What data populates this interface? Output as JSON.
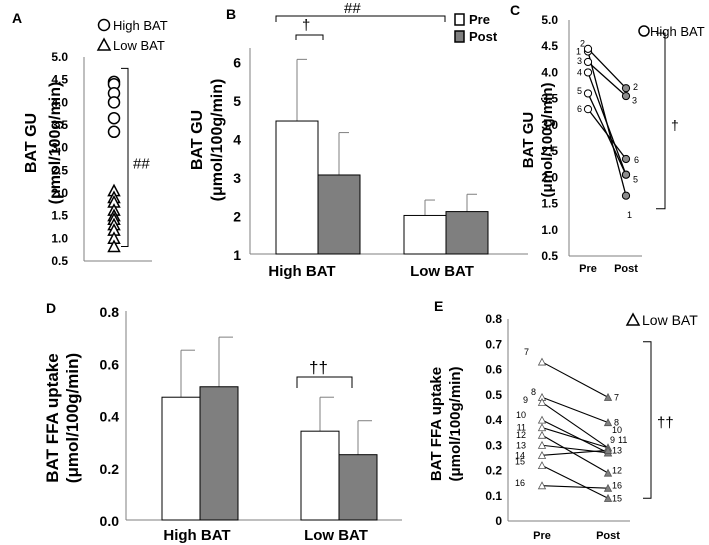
{
  "colors": {
    "white_fill": "#ffffff",
    "dark_fill": "#7f7f7f",
    "mid_fill": "#8c8c8c",
    "axis": "#7f7f7f",
    "line": "#000000"
  },
  "chart_data": [
    {
      "panel": "A",
      "type": "scatter",
      "ylabel": "BAT GU",
      "ylabel2": "(μmol/100g/min)",
      "ylim": [
        0.5,
        5.0
      ],
      "yticks": [
        "0.5",
        "1.0",
        "1.5",
        "2.0",
        "2.5",
        "3.0",
        "3.5",
        "4.0",
        "4.5",
        "5.0"
      ],
      "legend": [
        {
          "symbol": "circle",
          "label": "High BAT"
        },
        {
          "symbol": "triangle",
          "label": "Low BAT"
        }
      ],
      "series": [
        {
          "name": "High BAT",
          "symbol": "circle",
          "values": [
            4.45,
            4.4,
            4.2,
            4.0,
            3.65,
            3.35
          ]
        },
        {
          "name": "Low BAT",
          "symbol": "triangle",
          "values": [
            2.05,
            1.9,
            1.8,
            1.62,
            1.5,
            1.42,
            1.3,
            1.18,
            1.0,
            0.82
          ]
        }
      ],
      "significance": "##",
      "bracket_range": [
        0.82,
        4.75
      ]
    },
    {
      "panel": "B",
      "type": "bar",
      "ylabel": "BAT GU",
      "ylabel2": "(μmol/100g/min)",
      "ylim": [
        1,
        6.5
      ],
      "yticks": [
        "1",
        "2",
        "3",
        "4",
        "5",
        "6"
      ],
      "categories": [
        "High BAT",
        "Low BAT"
      ],
      "legend": [
        {
          "label": "Pre"
        },
        {
          "label": "Post"
        }
      ],
      "series": [
        {
          "name": "Pre",
          "values": [
            4.45,
            2.0
          ],
          "errors": [
            1.6,
            0.4
          ]
        },
        {
          "name": "Post",
          "values": [
            3.05,
            2.1
          ],
          "errors": [
            1.1,
            0.45
          ]
        }
      ],
      "significance": {
        "pre_post_high": "†",
        "high_vs_low": "##"
      }
    },
    {
      "panel": "C",
      "type": "line",
      "ylabel": "BAT GU",
      "ylabel2": "(μmol/100g/min)",
      "ylim": [
        0.5,
        5.0
      ],
      "yticks": [
        "0.5",
        "1.0",
        "1.5",
        "2.0",
        "2.5",
        "3.0",
        "3.5",
        "4.0",
        "4.5",
        "5.0"
      ],
      "categories": [
        "Pre",
        "Post"
      ],
      "legend": [
        {
          "symbol": "circle",
          "label": "High BAT"
        }
      ],
      "subjects": [
        {
          "id": "1",
          "pre": 4.4,
          "post": 1.65
        },
        {
          "id": "2",
          "pre": 4.45,
          "post": 3.7
        },
        {
          "id": "3",
          "pre": 4.2,
          "post": 3.55
        },
        {
          "id": "4",
          "pre": 4.0,
          "post": 2.05
        },
        {
          "id": "5",
          "pre": 3.6,
          "post": 2.05
        },
        {
          "id": "6",
          "pre": 3.3,
          "post": 2.35
        }
      ],
      "pre_labels": [
        "2",
        "1",
        "3",
        "4",
        "5",
        "6"
      ],
      "post_labels": [
        "2",
        "3",
        "6",
        "5",
        "1"
      ],
      "significance": "†"
    },
    {
      "panel": "D",
      "type": "bar",
      "ylabel": "BAT FFA uptake",
      "ylabel2": "(μmol/100g/min)",
      "ylim": [
        0,
        0.8
      ],
      "yticks": [
        "0.0",
        "0.2",
        "0.4",
        "0.6",
        "0.8"
      ],
      "categories": [
        "High BAT",
        "Low BAT"
      ],
      "series": [
        {
          "name": "Pre",
          "values": [
            0.47,
            0.34
          ],
          "errors": [
            0.18,
            0.13
          ]
        },
        {
          "name": "Post",
          "values": [
            0.51,
            0.25
          ],
          "errors": [
            0.19,
            0.13
          ]
        }
      ],
      "significance": "††"
    },
    {
      "panel": "E",
      "type": "line",
      "ylabel": "BAT FFA uptake",
      "ylabel2": "(μmol/100g/min)",
      "ylim": [
        0,
        0.8
      ],
      "yticks": [
        "0",
        "0.1",
        "0.2",
        "0.3",
        "0.4",
        "0.5",
        "0.6",
        "0.7",
        "0.8"
      ],
      "categories": [
        "Pre",
        "Post"
      ],
      "legend": [
        {
          "symbol": "triangle",
          "label": "Low BAT"
        }
      ],
      "subjects": [
        {
          "id": "7",
          "pre": 0.63,
          "post": 0.49
        },
        {
          "id": "8",
          "pre": 0.49,
          "post": 0.39
        },
        {
          "id": "9",
          "pre": 0.47,
          "post": 0.29
        },
        {
          "id": "10",
          "pre": 0.4,
          "post": 0.27
        },
        {
          "id": "11",
          "pre": 0.37,
          "post": 0.29
        },
        {
          "id": "12",
          "pre": 0.34,
          "post": 0.19
        },
        {
          "id": "13",
          "pre": 0.3,
          "post": 0.27
        },
        {
          "id": "14",
          "pre": 0.26,
          "post": 0.28
        },
        {
          "id": "15",
          "pre": 0.22,
          "post": 0.09
        },
        {
          "id": "16",
          "pre": 0.14,
          "post": 0.13
        }
      ],
      "pre_labels": [
        "7",
        "8",
        "9",
        "10",
        "11",
        "12",
        "13",
        "14",
        "15",
        "16"
      ],
      "post_labels": [
        "7",
        "8",
        "10",
        "9",
        "11",
        "13",
        "12",
        "16",
        "15"
      ],
      "significance": "††"
    }
  ]
}
